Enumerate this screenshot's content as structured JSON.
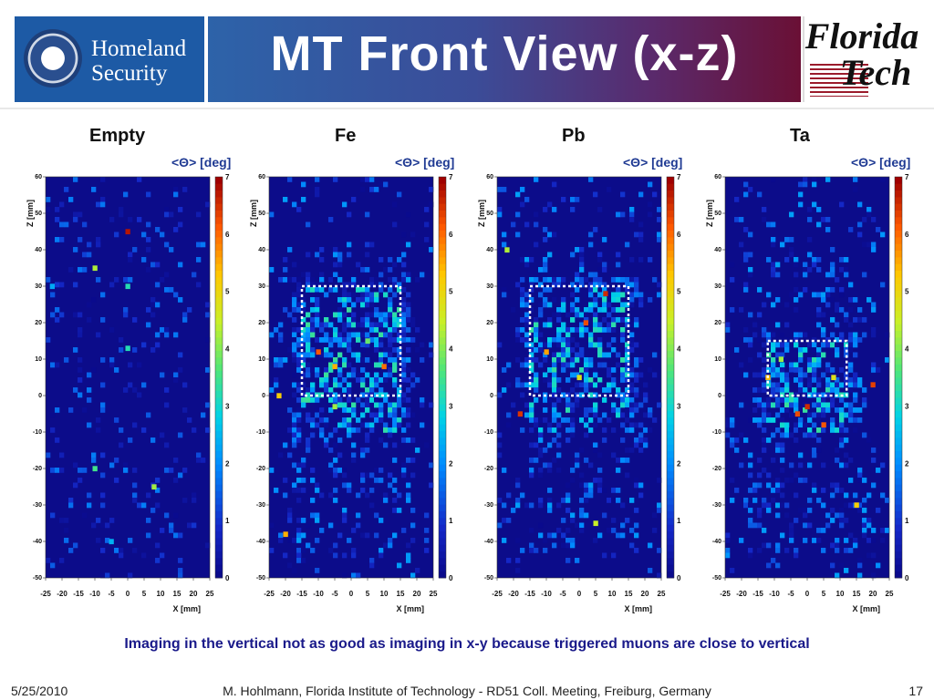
{
  "header": {
    "title": "MT Front View (x-z)",
    "left_logo_text": [
      "Homeland",
      "Security"
    ],
    "right_logo_text": [
      "Florida",
      "Tech"
    ]
  },
  "chart_data": [
    {
      "type": "heatmap",
      "title": "Empty",
      "colorbar_label": "<Θ> [deg]",
      "xlabel": "X [mm]",
      "ylabel": "Z [mm]",
      "xlim": [
        -25,
        25
      ],
      "ylim": [
        -50,
        60
      ],
      "xticks": [
        "-25",
        "-20",
        "-15",
        "-10",
        "-5",
        "0",
        "5",
        "10",
        "15",
        "20",
        "25"
      ],
      "yticks": [
        "-50",
        "-40",
        "-30",
        "-20",
        "-10",
        "0",
        "10",
        "20",
        "30",
        "40",
        "50",
        "60"
      ],
      "cticks": [
        "0",
        "1",
        "2",
        "3",
        "4",
        "5",
        "6",
        "7"
      ],
      "clim": [
        0,
        7
      ],
      "hot_cells": [
        {
          "x": -10,
          "z": 35,
          "v": 4.3
        },
        {
          "x": 0,
          "z": 45,
          "v": 6.8
        },
        {
          "x": 0,
          "z": 30,
          "v": 3.2
        },
        {
          "x": -23,
          "z": 30,
          "v": 2.3
        },
        {
          "x": 0,
          "z": 13,
          "v": 3.2
        },
        {
          "x": -10,
          "z": -20,
          "v": 3.5
        },
        {
          "x": 8,
          "z": -25,
          "v": 4.2
        },
        {
          "x": -5,
          "z": -40,
          "v": 2.4
        }
      ]
    },
    {
      "type": "heatmap",
      "title": "Fe",
      "colorbar_label": "<Θ> [deg]",
      "xlabel": "X [mm]",
      "ylabel": "Z [mm]",
      "xlim": [
        -25,
        25
      ],
      "ylim": [
        -50,
        60
      ],
      "xticks": [
        "-25",
        "-20",
        "-15",
        "-10",
        "-5",
        "0",
        "5",
        "10",
        "15",
        "20",
        "25"
      ],
      "yticks": [
        "-50",
        "-40",
        "-30",
        "-20",
        "-10",
        "0",
        "10",
        "20",
        "30",
        "40",
        "50",
        "60"
      ],
      "cticks": [
        "0",
        "1",
        "2",
        "3",
        "4",
        "5",
        "6",
        "7"
      ],
      "clim": [
        0,
        7
      ],
      "box": {
        "x0": -15,
        "x1": 15,
        "z0": 0,
        "z1": 30
      },
      "hot_cells": [
        {
          "x": -10,
          "z": 12,
          "v": 6.2
        },
        {
          "x": -5,
          "z": 8,
          "v": 5.5
        },
        {
          "x": 10,
          "z": 8,
          "v": 6.0
        },
        {
          "x": -22,
          "z": 0,
          "v": 5.2
        },
        {
          "x": -20,
          "z": -38,
          "v": 5.5
        },
        {
          "x": -5,
          "z": -3,
          "v": 4.2
        },
        {
          "x": 5,
          "z": 15,
          "v": 3.8
        }
      ]
    },
    {
      "type": "heatmap",
      "title": "Pb",
      "colorbar_label": "<Θ> [deg]",
      "xlabel": "X [mm]",
      "ylabel": "Z [mm]",
      "xlim": [
        -25,
        25
      ],
      "ylim": [
        -50,
        60
      ],
      "xticks": [
        "-25",
        "-20",
        "-15",
        "-10",
        "-5",
        "0",
        "5",
        "10",
        "15",
        "20",
        "25"
      ],
      "yticks": [
        "-50",
        "-40",
        "-30",
        "-20",
        "-10",
        "0",
        "10",
        "20",
        "30",
        "40",
        "50",
        "60"
      ],
      "cticks": [
        "0",
        "1",
        "2",
        "3",
        "4",
        "5",
        "6",
        "7"
      ],
      "clim": [
        0,
        7
      ],
      "box": {
        "x0": -15,
        "x1": 15,
        "z0": 0,
        "z1": 30
      },
      "hot_cells": [
        {
          "x": 8,
          "z": 28,
          "v": 6.6
        },
        {
          "x": 2,
          "z": 20,
          "v": 6.3
        },
        {
          "x": -18,
          "z": -5,
          "v": 6.5
        },
        {
          "x": -10,
          "z": 12,
          "v": 5.6
        },
        {
          "x": 5,
          "z": -35,
          "v": 4.5
        },
        {
          "x": -22,
          "z": 40,
          "v": 4.3
        },
        {
          "x": 0,
          "z": 5,
          "v": 4.8
        }
      ]
    },
    {
      "type": "heatmap",
      "title": "Ta",
      "colorbar_label": "<Θ> [deg]",
      "xlabel": "X [mm]",
      "ylabel": "Z [mm]",
      "xlim": [
        -25,
        25
      ],
      "ylim": [
        -50,
        60
      ],
      "xticks": [
        "-25",
        "-20",
        "-15",
        "-10",
        "-5",
        "0",
        "5",
        "10",
        "15",
        "20",
        "25"
      ],
      "yticks": [
        "-50",
        "-40",
        "-30",
        "-20",
        "-10",
        "0",
        "10",
        "20",
        "30",
        "40",
        "50",
        "60"
      ],
      "cticks": [
        "0",
        "1",
        "2",
        "3",
        "4",
        "5",
        "6",
        "7"
      ],
      "clim": [
        0,
        7
      ],
      "box": {
        "x0": -12,
        "x1": 12,
        "z0": 0,
        "z1": 15
      },
      "hot_cells": [
        {
          "x": 0,
          "z": -3,
          "v": 6.6
        },
        {
          "x": -3,
          "z": -5,
          "v": 6.3
        },
        {
          "x": 5,
          "z": -8,
          "v": 6.2
        },
        {
          "x": 20,
          "z": 3,
          "v": 6.4
        },
        {
          "x": -12,
          "z": 5,
          "v": 5.4
        },
        {
          "x": 15,
          "z": -30,
          "v": 5.2
        },
        {
          "x": 8,
          "z": 5,
          "v": 4.8
        },
        {
          "x": -8,
          "z": 10,
          "v": 4.2
        }
      ]
    }
  ],
  "caption": "Imaging in the vertical not as good as imaging in x-y because triggered muons are close to vertical",
  "footer": {
    "date": "5/25/2010",
    "center": "M. Hohlmann, Florida Institute of Technology - RD51 Coll. Meeting, Freiburg, Germany",
    "page": "17"
  }
}
